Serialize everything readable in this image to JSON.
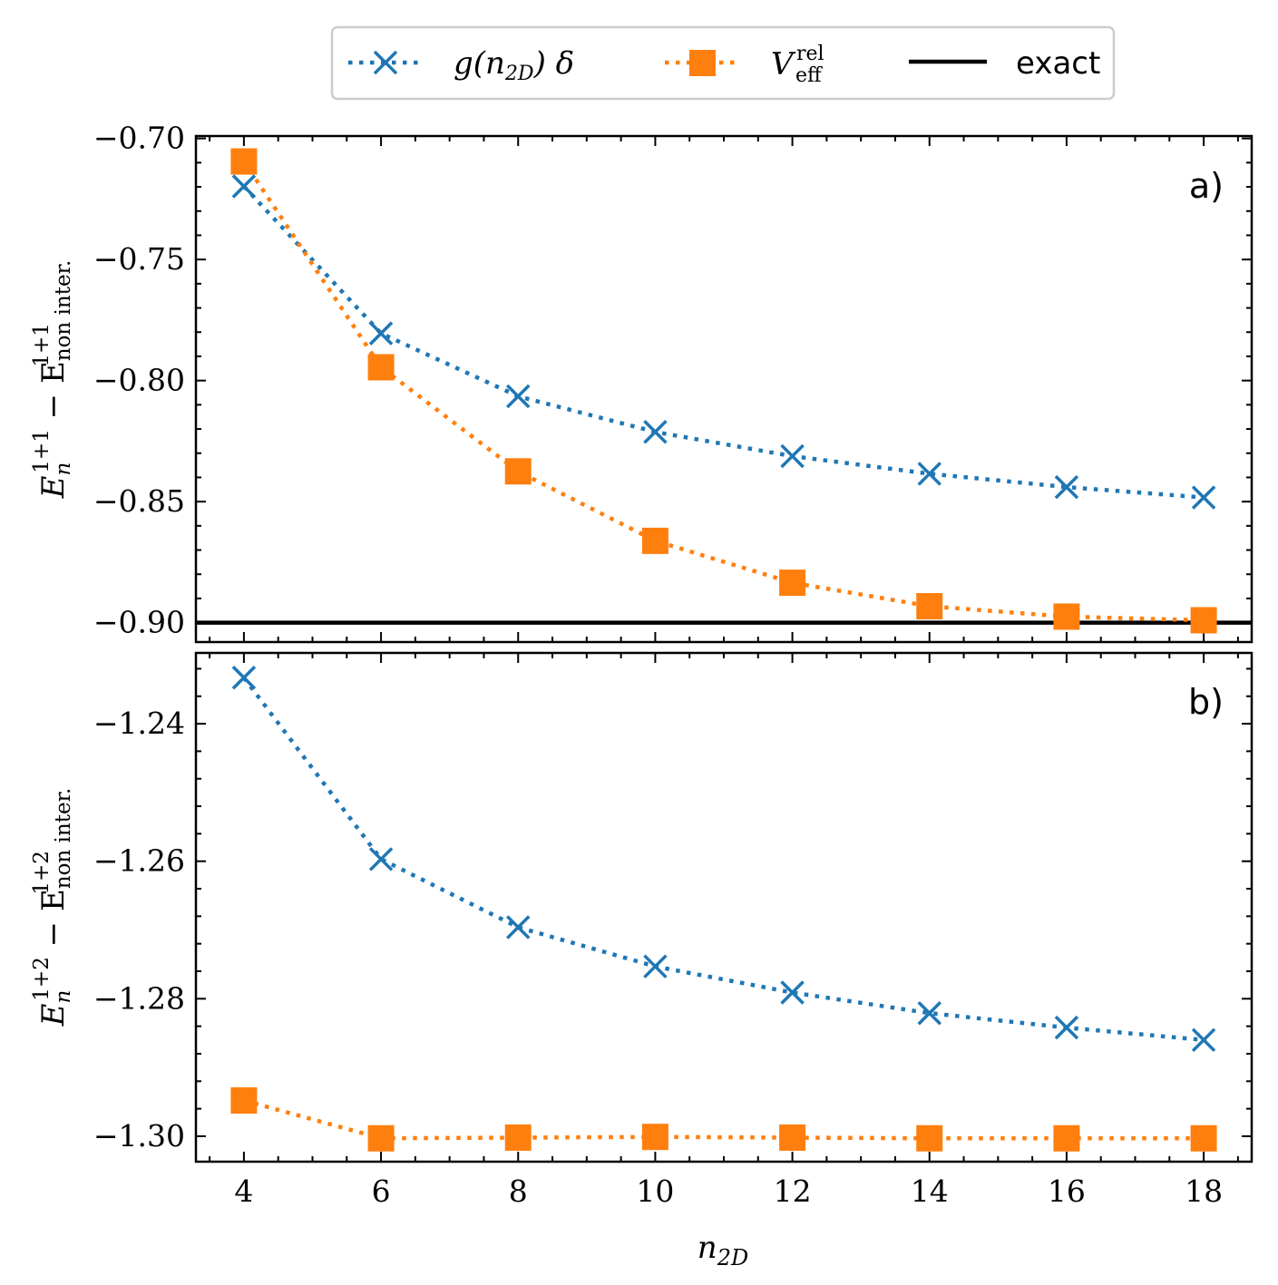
{
  "legend": {
    "items": [
      {
        "label_main": "g(n",
        "label_sub": "2D",
        "label_tail": ") δ",
        "marker": "x",
        "color": "#1f77b4",
        "linestyle": "dotted"
      },
      {
        "label_main": "V",
        "label_sup": "rel",
        "label_sub": "eff",
        "marker": "square",
        "color": "#ff7f0e",
        "linestyle": "dotted"
      },
      {
        "label": "exact",
        "color": "#000000",
        "linestyle": "solid"
      }
    ]
  },
  "xlabel": {
    "main": "n",
    "sub": "2D"
  },
  "colors": {
    "blue": "#1f77b4",
    "orange": "#ff7f0e",
    "black": "#000000"
  },
  "chart_data": [
    {
      "type": "line",
      "panel_label": "a)",
      "ylabel": {
        "main": "E",
        "sub1": "n",
        "sup1": "1+1",
        "minus": " − E",
        "sub2": "non inter.",
        "sup2": "1+1"
      },
      "x": [
        4,
        6,
        8,
        10,
        12,
        14,
        16,
        18
      ],
      "xlim": [
        3.3,
        18.7
      ],
      "ylim": [
        -0.908,
        -0.699
      ],
      "yticks": [
        -0.7,
        -0.75,
        -0.8,
        -0.85,
        -0.9
      ],
      "ytick_labels": [
        "−0.70",
        "−0.75",
        "−0.80",
        "−0.85",
        "−0.90"
      ],
      "series": [
        {
          "name": "g(n2D) δ",
          "marker": "x",
          "color": "#1f77b4",
          "values": [
            -0.7198,
            -0.7805,
            -0.8065,
            -0.8212,
            -0.8312,
            -0.8385,
            -0.844,
            -0.8483
          ]
        },
        {
          "name": "V_eff^rel",
          "marker": "square",
          "color": "#ff7f0e",
          "values": [
            -0.7095,
            -0.7945,
            -0.8375,
            -0.8662,
            -0.8835,
            -0.8932,
            -0.8975,
            -0.899
          ]
        }
      ],
      "exact": -0.9
    },
    {
      "type": "line",
      "panel_label": "b)",
      "ylabel": {
        "main": "E",
        "sub1": "n",
        "sup1": "1+2",
        "minus": " − E",
        "sub2": "non inter.",
        "sup2": "1+2"
      },
      "x": [
        4,
        6,
        8,
        10,
        12,
        14,
        16,
        18
      ],
      "xlim": [
        3.3,
        18.7
      ],
      "ylim": [
        -1.3037,
        -1.2297
      ],
      "yticks": [
        -1.24,
        -1.26,
        -1.28,
        -1.3
      ],
      "ytick_labels": [
        "−1.24",
        "−1.26",
        "−1.28",
        "−1.30"
      ],
      "xticks": [
        4,
        6,
        8,
        10,
        12,
        14,
        16,
        18
      ],
      "xtick_labels": [
        "4",
        "6",
        "8",
        "10",
        "12",
        "14",
        "16",
        "18"
      ],
      "series": [
        {
          "name": "g(n2D) δ",
          "marker": "x",
          "color": "#1f77b4",
          "values": [
            -1.2333,
            -1.2597,
            -1.2696,
            -1.2753,
            -1.2791,
            -1.2821,
            -1.2842,
            -1.286
          ]
        },
        {
          "name": "V_eff^rel",
          "marker": "square",
          "color": "#ff7f0e",
          "values": [
            -1.2948,
            -1.3003,
            -1.3002,
            -1.3001,
            -1.3002,
            -1.3003,
            -1.3003,
            -1.3003
          ]
        }
      ]
    }
  ]
}
